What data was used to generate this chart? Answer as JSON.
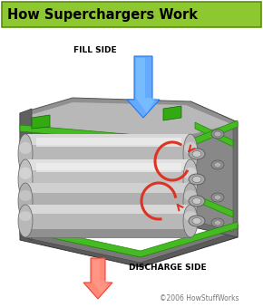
{
  "title": "How Superchargers Work",
  "title_bg_top": "#9ed64a",
  "title_bg_bot": "#6aaa18",
  "title_color": "black",
  "title_fontsize": 10.5,
  "fill_side_label": "FILL SIDE",
  "discharge_label": "DISCHARGE SIDE",
  "copyright": "©2006 HowStuffWorks",
  "label_fontsize": 6.5,
  "copyright_fontsize": 5.5,
  "bg_color": "white",
  "arrow_blue": "#2277ee",
  "arrow_blue_light": "#66aaff",
  "arrow_red": "#dd3322",
  "arrow_red_light": "#ff6655",
  "arrow_red_discharge": "#ee4433",
  "arrow_red_discharge_light": "#ff8877",
  "fig_width": 2.9,
  "fig_height": 3.39,
  "dpi": 100
}
